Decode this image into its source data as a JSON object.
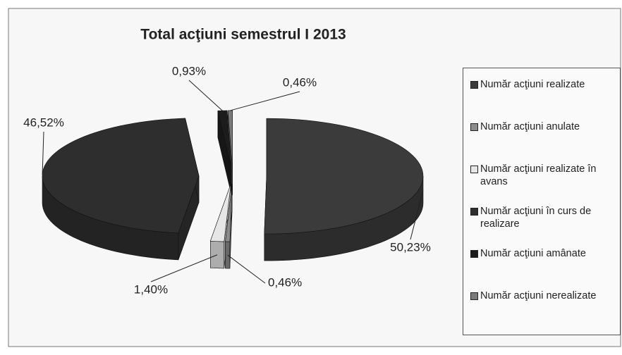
{
  "chart_data": {
    "type": "pie3d",
    "title": "Total acţiuni semestrul I 2013",
    "categories": [
      "Număr acţiuni realizate",
      "Număr acţiuni anulate",
      "Număr acţiuni realizate în avans",
      "Număr acţiuni în curs de realizare",
      "Număr acţiuni amânate",
      "Număr acţiuni nerealizate"
    ],
    "values": [
      50.23,
      0.46,
      1.4,
      46.52,
      0.93,
      0.46
    ],
    "value_labels": [
      "50,23%",
      "0,46%",
      "1,40%",
      "46,52%",
      "0,93%",
      "0,46%"
    ],
    "colors": [
      "#3b3b3b",
      "#8c8c8c",
      "#e6e6e6",
      "#2e2e2e",
      "#1c1c1c",
      "#7a7a7a"
    ],
    "legend": "right"
  }
}
